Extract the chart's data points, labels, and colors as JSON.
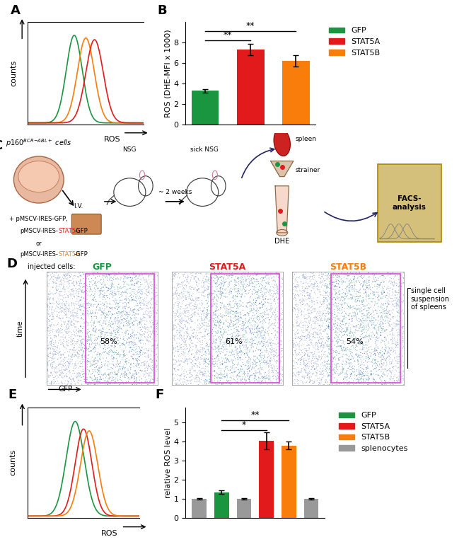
{
  "panel_B": {
    "categories": [
      "GFP",
      "STAT5A",
      "STAT5B"
    ],
    "values": [
      3.3,
      7.3,
      6.2
    ],
    "errors": [
      0.15,
      0.55,
      0.55
    ],
    "colors": [
      "#1a9641",
      "#e31a1c",
      "#f97d0b"
    ],
    "ylabel": "ROS (DHE-MFI x 1000)",
    "ylim": [
      0,
      9
    ],
    "yticks": [
      0,
      2,
      4,
      6,
      8
    ]
  },
  "panel_F": {
    "values": [
      1.0,
      1.35,
      1.0,
      4.05,
      3.8,
      1.0
    ],
    "errors": [
      0.05,
      0.1,
      0.05,
      0.45,
      0.2,
      0.05
    ],
    "colors": [
      "#999999",
      "#1a9641",
      "#999999",
      "#e31a1c",
      "#f97d0b",
      "#999999"
    ],
    "ylabel": "relative ROS level",
    "ylim": [
      0,
      5.5
    ],
    "yticks": [
      0,
      1,
      2,
      3,
      4,
      5
    ]
  },
  "panel_A": {
    "peaks": [
      {
        "color": "#1a9641",
        "mu": 0.52,
        "sigma": 0.055,
        "amp": 1.0
      },
      {
        "color": "#f97d0b",
        "mu": 0.6,
        "sigma": 0.058,
        "amp": 0.97
      },
      {
        "color": "#e31a1c",
        "mu": 0.66,
        "sigma": 0.06,
        "amp": 0.95
      }
    ]
  },
  "panel_E": {
    "peaks": [
      {
        "color": "#1a9641",
        "mu": 0.44,
        "sigma": 0.065,
        "amp": 1.0
      },
      {
        "color": "#e31a1c",
        "mu": 0.5,
        "sigma": 0.06,
        "amp": 0.92
      },
      {
        "color": "#f97d0b",
        "mu": 0.54,
        "sigma": 0.062,
        "amp": 0.9
      }
    ]
  },
  "legend_B": {
    "labels": [
      "GFP",
      "STAT5A",
      "STAT5B"
    ],
    "colors": [
      "#1a9641",
      "#e31a1c",
      "#f97d0b"
    ]
  },
  "legend_F": {
    "labels": [
      "GFP",
      "STAT5A",
      "STAT5B",
      "splenocytes"
    ],
    "colors": [
      "#1a9641",
      "#e31a1c",
      "#f97d0b",
      "#999999"
    ]
  },
  "panel_D": {
    "labels": [
      "GFP",
      "STAT5A",
      "STAT5B"
    ],
    "label_colors": [
      "#1a9641",
      "#e31a1c",
      "#f97d0b"
    ],
    "percentages": [
      "58%",
      "61%",
      "54%"
    ]
  }
}
